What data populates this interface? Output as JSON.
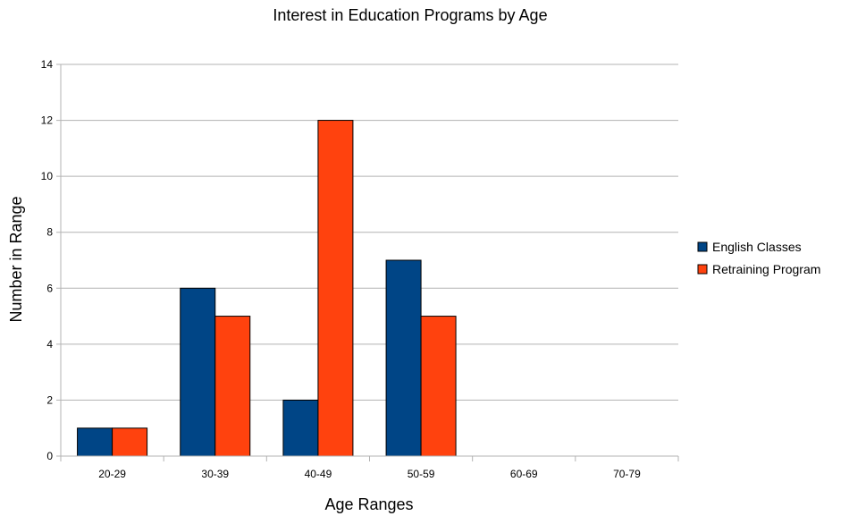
{
  "chart_data": {
    "type": "bar",
    "title": "Interest in Education Programs by Age",
    "xlabel": "Age Ranges",
    "ylabel": "Number in Range",
    "categories": [
      "20-29",
      "30-39",
      "40-49",
      "50-59",
      "60-69",
      "70-79"
    ],
    "series": [
      {
        "name": "English Classes",
        "values": [
          1,
          6,
          2,
          7,
          0,
          0
        ],
        "color": "#004586"
      },
      {
        "name": "Retraining Program",
        "values": [
          1,
          5,
          12,
          5,
          0,
          0
        ],
        "color": "#ff420e"
      }
    ],
    "ylim": [
      0,
      14
    ],
    "yticks": [
      "0",
      "2",
      "4",
      "6",
      "8",
      "10",
      "12",
      "14"
    ],
    "grid": true,
    "legend": "right"
  }
}
